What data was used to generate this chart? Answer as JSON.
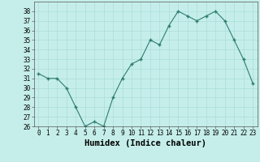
{
  "x": [
    0,
    1,
    2,
    3,
    4,
    5,
    6,
    7,
    8,
    9,
    10,
    11,
    12,
    13,
    14,
    15,
    16,
    17,
    18,
    19,
    20,
    21,
    22,
    23
  ],
  "y": [
    31.5,
    31.0,
    31.0,
    30.0,
    28.0,
    26.0,
    26.5,
    26.0,
    29.0,
    31.0,
    32.5,
    33.0,
    35.0,
    34.5,
    36.5,
    38.0,
    37.5,
    37.0,
    37.5,
    38.0,
    37.0,
    35.0,
    33.0,
    30.5
  ],
  "xlabel": "Humidex (Indice chaleur)",
  "ylim": [
    26,
    39
  ],
  "yticks": [
    26,
    27,
    28,
    29,
    30,
    31,
    32,
    33,
    34,
    35,
    36,
    37,
    38
  ],
  "xticks": [
    0,
    1,
    2,
    3,
    4,
    5,
    6,
    7,
    8,
    9,
    10,
    11,
    12,
    13,
    14,
    15,
    16,
    17,
    18,
    19,
    20,
    21,
    22,
    23
  ],
  "line_color": "#2e7d6e",
  "marker_color": "#2e7d6e",
  "bg_color": "#c5eeea",
  "grid_color": "#aaddda",
  "fig_bg": "#c5eeea",
  "tick_fontsize": 5.5,
  "xlabel_fontsize": 7.5
}
